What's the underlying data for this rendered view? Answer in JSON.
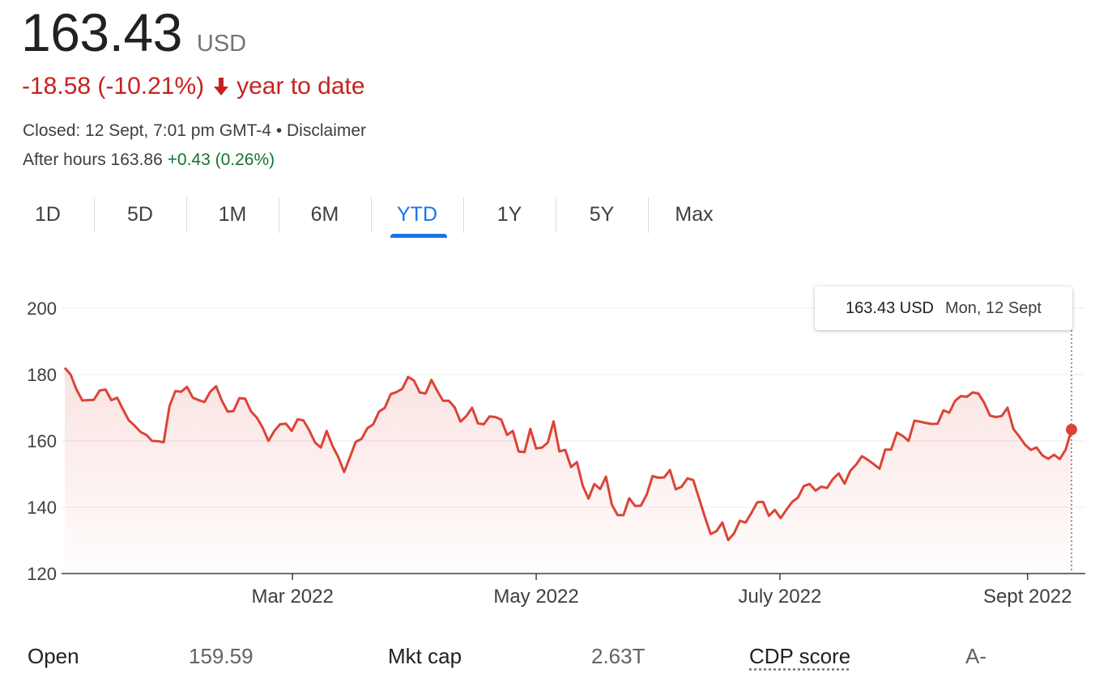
{
  "header": {
    "price": "163.43",
    "currency": "USD",
    "change": "-18.58 (-10.21%)",
    "change_period": "year to date",
    "closed_text": "Closed: 12 Sept, 7:01 pm GMT-4",
    "separator": " • ",
    "disclaimer": "Disclaimer",
    "after_hours_label": "After hours 163.86",
    "after_hours_change": "+0.43 (0.26%)"
  },
  "tabs": [
    "1D",
    "5D",
    "1M",
    "6M",
    "YTD",
    "1Y",
    "5Y",
    "Max"
  ],
  "active_tab": "YTD",
  "tooltip": {
    "value": "163.43 USD",
    "date": "Mon, 12 Sept"
  },
  "stats": [
    {
      "label": "Open",
      "value": "159.59"
    },
    {
      "label": "Mkt cap",
      "value": "2.63T"
    },
    {
      "label": "CDP score",
      "value": "A-"
    }
  ],
  "colors": {
    "line": "#db4437",
    "negative": "#c5221f",
    "positive": "#137333",
    "accent": "#1a73e8"
  },
  "chart_data": {
    "type": "area",
    "x_start": "2022-01-03",
    "x_end": "2022-09-12",
    "ylim": [
      120,
      200
    ],
    "yticks": [
      200,
      180,
      160,
      140,
      120
    ],
    "xticks": [
      {
        "label": "Mar 2022",
        "date": "2022-03-01"
      },
      {
        "label": "May 2022",
        "date": "2022-05-01"
      },
      {
        "label": "July 2022",
        "date": "2022-07-01"
      },
      {
        "label": "Sept 2022",
        "date": "2022-09-01"
      }
    ],
    "grid": true,
    "series": [
      {
        "values": [
          182.0,
          180.0,
          175.5,
          172.2,
          172.3,
          172.4,
          175.2,
          175.5,
          172.3,
          173.0,
          169.5,
          166.2,
          164.6,
          162.7,
          161.8,
          160.0,
          159.9,
          159.6,
          170.5,
          175.0,
          174.8,
          176.3,
          173.0,
          172.3,
          171.7,
          174.8,
          176.5,
          172.1,
          168.8,
          169.0,
          172.9,
          172.7,
          168.9,
          167.0,
          164.0,
          160.0,
          163.0,
          165.0,
          165.2,
          163.0,
          166.5,
          166.2,
          163.2,
          159.5,
          158.0,
          163.0,
          158.5,
          155.1,
          150.6,
          155.1,
          159.7,
          160.6,
          163.8,
          165.0,
          168.8,
          170.0,
          174.1,
          174.7,
          175.7,
          179.3,
          178.2,
          174.6,
          174.3,
          178.4,
          175.1,
          172.1,
          172.1,
          170.1,
          165.8,
          167.5,
          170.0,
          165.3,
          165.0,
          167.4,
          167.2,
          166.4,
          161.8,
          163.0,
          156.8,
          156.6,
          163.6,
          157.7,
          158.0,
          159.5,
          165.9,
          156.8,
          157.3,
          152.1,
          153.6,
          146.5,
          142.6,
          147.0,
          145.5,
          149.2,
          140.8,
          137.6,
          137.6,
          142.7,
          140.4,
          140.5,
          143.8,
          149.4,
          148.9,
          149.0,
          151.2,
          145.4,
          146.2,
          148.7,
          148.2,
          142.6,
          137.1,
          131.9,
          132.8,
          135.4,
          130.1,
          132.1,
          135.9,
          135.4,
          138.3,
          141.5,
          141.6,
          137.4,
          139.2,
          136.7,
          139.2,
          141.6,
          142.9,
          146.4,
          147.0,
          145.0,
          146.2,
          145.8,
          148.5,
          150.2,
          147.1,
          151.0,
          152.9,
          155.4,
          154.3,
          153.0,
          151.6,
          157.4,
          157.4,
          162.5,
          161.5,
          160.0,
          166.1,
          165.8,
          165.4,
          165.1,
          165.2,
          169.2,
          168.5,
          172.1,
          173.5,
          173.3,
          174.6,
          174.3,
          171.5,
          167.6,
          167.2,
          167.5,
          170.0,
          163.6,
          161.4,
          158.9,
          157.3,
          158.0,
          155.6,
          154.6,
          155.8,
          154.5,
          157.4,
          163.4
        ]
      }
    ]
  }
}
